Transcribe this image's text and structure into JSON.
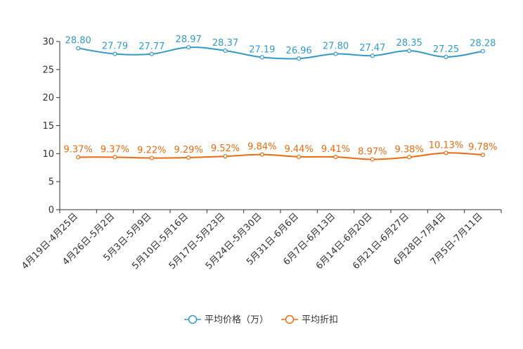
{
  "chart_data": {
    "type": "line",
    "title": "",
    "xlabel": "",
    "ylabel": "",
    "ylim": [
      0,
      30
    ],
    "yticks": [
      0,
      5,
      10,
      15,
      20,
      25,
      30
    ],
    "grid": false,
    "legend_position": "bottom-center",
    "categories": [
      "4月19日-4月25日",
      "4月26日-5月2日",
      "5月3日-5月9日",
      "5月10日-5月16日",
      "5月17日-5月23日",
      "5月24日-5月30日",
      "5月31日-6月6日",
      "6月7日-6月13日",
      "6月14日-6月20日",
      "6月21日-6月27日",
      "6月28日-7月4日",
      "7月5日-7月11日"
    ],
    "series": [
      {
        "name": "平均价格（万）",
        "color": "#3399cc",
        "values": [
          28.8,
          27.79,
          27.77,
          28.97,
          28.37,
          27.19,
          26.96,
          27.8,
          27.47,
          28.35,
          27.25,
          28.28
        ],
        "labels": [
          "28.80",
          "27.79",
          "27.77",
          "28.97",
          "28.37",
          "27.19",
          "26.96",
          "27.80",
          "27.47",
          "28.35",
          "27.25",
          "28.28"
        ]
      },
      {
        "name": "平均折扣",
        "color": "#ee6a0e",
        "values": [
          9.37,
          9.37,
          9.22,
          9.29,
          9.52,
          9.84,
          9.44,
          9.41,
          8.97,
          9.38,
          10.13,
          9.78
        ],
        "labels": [
          "9.37%",
          "9.37%",
          "9.22%",
          "9.29%",
          "9.52%",
          "9.84%",
          "9.44%",
          "9.41%",
          "8.97%",
          "9.38%",
          "10.13%",
          "9.78%"
        ]
      }
    ]
  }
}
